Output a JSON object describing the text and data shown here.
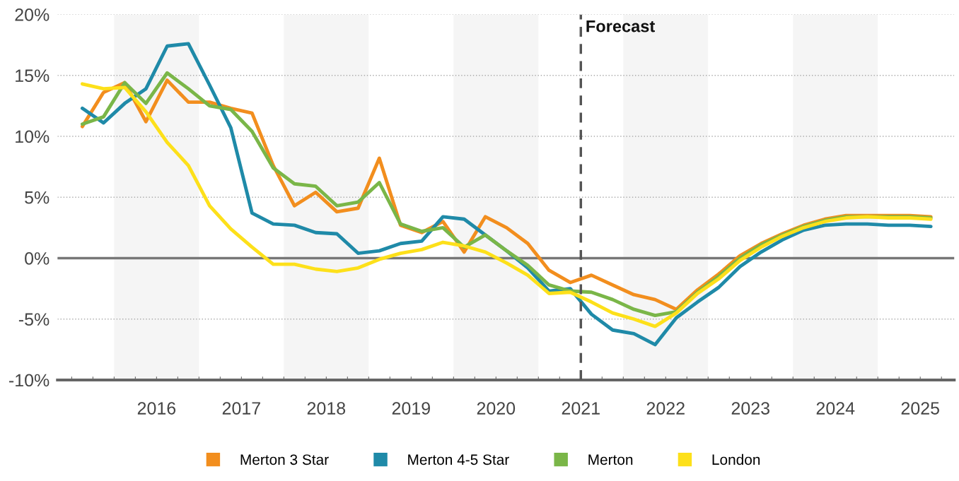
{
  "chart_data": {
    "type": "line",
    "x": [
      2015.625,
      2015.875,
      2016.125,
      2016.375,
      2016.625,
      2016.875,
      2017.125,
      2017.375,
      2017.625,
      2017.875,
      2018.125,
      2018.375,
      2018.625,
      2018.875,
      2019.125,
      2019.375,
      2019.625,
      2019.875,
      2020.125,
      2020.375,
      2020.625,
      2020.875,
      2021.125,
      2021.375,
      2021.625,
      2021.875,
      2022.125,
      2022.375,
      2022.625,
      2022.875,
      2023.125,
      2023.375,
      2023.625,
      2023.875,
      2024.125,
      2024.375,
      2024.625,
      2024.875,
      2025.125,
      2025.375,
      2025.625
    ],
    "series": [
      {
        "name": "Merton 3 Star",
        "color": "#f28e1e",
        "values": [
          10.8,
          13.6,
          14.4,
          11.2,
          14.6,
          12.8,
          12.8,
          12.3,
          11.9,
          7.6,
          4.3,
          5.4,
          3.8,
          4.1,
          8.2,
          2.7,
          2.1,
          3.0,
          0.5,
          3.4,
          2.5,
          1.2,
          -1.0,
          -2.0,
          -1.4,
          -2.2,
          -3.0,
          -3.4,
          -4.2,
          -2.6,
          -1.3,
          0.2,
          1.2,
          2.0,
          2.7,
          3.2,
          3.5,
          3.5,
          3.5,
          3.5,
          3.4
        ]
      },
      {
        "name": "Merton 4-5 Star",
        "color": "#1f8aa8",
        "values": [
          12.3,
          11.1,
          12.7,
          13.9,
          17.4,
          17.6,
          14.2,
          10.7,
          3.7,
          2.8,
          2.7,
          2.1,
          2.0,
          0.4,
          0.6,
          1.2,
          1.4,
          3.4,
          3.2,
          1.9,
          0.6,
          -0.8,
          -2.7,
          -2.5,
          -4.6,
          -5.9,
          -6.2,
          -7.1,
          -4.9,
          -3.6,
          -2.4,
          -0.7,
          0.5,
          1.5,
          2.3,
          2.7,
          2.8,
          2.8,
          2.7,
          2.7,
          2.6
        ]
      },
      {
        "name": "Merton",
        "color": "#7ab648",
        "values": [
          11.0,
          11.6,
          14.4,
          12.7,
          15.2,
          13.9,
          12.5,
          12.2,
          10.4,
          7.4,
          6.1,
          5.9,
          4.3,
          4.6,
          6.2,
          2.8,
          2.2,
          2.5,
          0.9,
          1.9,
          0.6,
          -0.6,
          -2.2,
          -2.7,
          -2.8,
          -3.4,
          -4.2,
          -4.7,
          -4.4,
          -2.8,
          -1.5,
          0.0,
          1.1,
          1.9,
          2.6,
          3.1,
          3.4,
          3.4,
          3.4,
          3.4,
          3.3
        ]
      },
      {
        "name": "London",
        "color": "#fde01a",
        "values": [
          14.3,
          13.9,
          14.0,
          12.0,
          9.5,
          7.6,
          4.3,
          2.4,
          0.9,
          -0.5,
          -0.5,
          -0.9,
          -1.1,
          -0.8,
          -0.1,
          0.4,
          0.7,
          1.3,
          1.0,
          0.5,
          -0.4,
          -1.4,
          -2.9,
          -2.8,
          -3.6,
          -4.5,
          -5.0,
          -5.6,
          -4.5,
          -2.9,
          -1.7,
          -0.2,
          0.9,
          1.8,
          2.5,
          3.0,
          3.3,
          3.4,
          3.3,
          3.3,
          3.2
        ]
      }
    ],
    "xlim": [
      2015.333,
      2025.9
    ],
    "xticks": [
      {
        "value": 2015.5,
        "label": null
      },
      {
        "value": 2015.75,
        "label": null
      },
      {
        "value": 2016,
        "label": null
      },
      {
        "value": 2016.25,
        "label": null
      },
      {
        "value": 2016.5,
        "label": "2016"
      },
      {
        "value": 2016.75,
        "label": null
      },
      {
        "value": 2017,
        "label": null
      },
      {
        "value": 2017.25,
        "label": null
      },
      {
        "value": 2017.5,
        "label": "2017"
      },
      {
        "value": 2017.75,
        "label": null
      },
      {
        "value": 2018,
        "label": null
      },
      {
        "value": 2018.25,
        "label": null
      },
      {
        "value": 2018.5,
        "label": "2018"
      },
      {
        "value": 2018.75,
        "label": null
      },
      {
        "value": 2019,
        "label": null
      },
      {
        "value": 2019.25,
        "label": null
      },
      {
        "value": 2019.5,
        "label": "2019"
      },
      {
        "value": 2019.75,
        "label": null
      },
      {
        "value": 2020,
        "label": null
      },
      {
        "value": 2020.25,
        "label": null
      },
      {
        "value": 2020.5,
        "label": "2020"
      },
      {
        "value": 2020.75,
        "label": null
      },
      {
        "value": 2021,
        "label": null
      },
      {
        "value": 2021.25,
        "label": null
      },
      {
        "value": 2021.5,
        "label": "2021"
      },
      {
        "value": 2021.75,
        "label": null
      },
      {
        "value": 2022,
        "label": null
      },
      {
        "value": 2022.25,
        "label": null
      },
      {
        "value": 2022.5,
        "label": "2022"
      },
      {
        "value": 2022.75,
        "label": null
      },
      {
        "value": 2023,
        "label": null
      },
      {
        "value": 2023.25,
        "label": null
      },
      {
        "value": 2023.5,
        "label": "2023"
      },
      {
        "value": 2023.75,
        "label": null
      },
      {
        "value": 2024,
        "label": null
      },
      {
        "value": 2024.25,
        "label": null
      },
      {
        "value": 2024.5,
        "label": "2024"
      },
      {
        "value": 2024.75,
        "label": null
      },
      {
        "value": 2025,
        "label": null
      },
      {
        "value": 2025.25,
        "label": null
      },
      {
        "value": 2025.5,
        "label": "2025"
      },
      {
        "value": 2025.75,
        "label": null
      }
    ],
    "ylim": [
      -10,
      20
    ],
    "yticks": [
      {
        "value": -10,
        "label": "-10%"
      },
      {
        "value": -5,
        "label": "-5%"
      },
      {
        "value": 0,
        "label": "0%"
      },
      {
        "value": 5,
        "label": "5%"
      },
      {
        "value": 10,
        "label": "10%"
      },
      {
        "value": 15,
        "label": "15%"
      },
      {
        "value": 20,
        "label": "20%"
      }
    ],
    "grid": "y",
    "legend": "bottom",
    "marker": "none",
    "line_style": "solid",
    "ref_lines": [
      {
        "axis": "x",
        "value": 2021.5,
        "label": "Forecast",
        "color": "#555555",
        "line_style": "dashed"
      },
      {
        "axis": "y",
        "value": 0,
        "label": null,
        "color": "#777777",
        "line_style": "solid"
      }
    ],
    "bands": [
      {
        "axis": "x",
        "from": 2016,
        "to": 2017,
        "label": null,
        "color": "#f5f5f5"
      },
      {
        "axis": "x",
        "from": 2018,
        "to": 2019,
        "label": null,
        "color": "#f5f5f5"
      },
      {
        "axis": "x",
        "from": 2020,
        "to": 2021,
        "label": null,
        "color": "#f5f5f5"
      },
      {
        "axis": "x",
        "from": 2022,
        "to": 2023,
        "label": null,
        "color": "#f5f5f5"
      },
      {
        "axis": "x",
        "from": 2024,
        "to": 2025,
        "label": null,
        "color": "#f5f5f5"
      }
    ]
  }
}
